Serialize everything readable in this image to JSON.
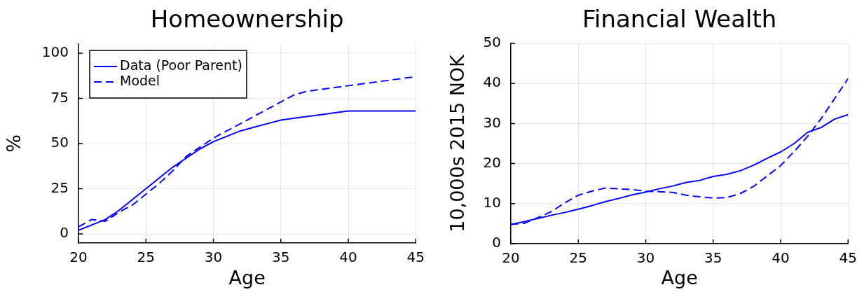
{
  "chart_data": [
    {
      "type": "line",
      "title": "Homeownership",
      "xlabel": "Age",
      "ylabel": "%",
      "x": [
        20,
        21,
        22,
        23,
        24,
        25,
        26,
        27,
        28,
        29,
        30,
        31,
        32,
        33,
        34,
        35,
        36,
        37,
        38,
        39,
        40,
        41,
        42,
        43,
        44,
        45
      ],
      "series": [
        {
          "name": "Data (Poor Parent)",
          "color": "#0000ff",
          "line_style": "solid",
          "values": [
            2,
            5,
            8,
            13,
            19,
            25,
            31,
            37,
            42,
            47,
            51,
            54,
            57,
            59,
            61,
            63,
            64,
            65,
            66,
            67,
            68,
            68,
            68,
            68,
            68,
            68
          ]
        },
        {
          "name": "Model",
          "color": "#0000ff",
          "line_style": "dashed",
          "values": [
            4,
            8,
            7,
            12,
            16,
            22,
            28,
            35,
            43,
            48,
            53,
            57,
            61,
            65,
            69,
            73,
            77,
            79,
            80,
            81,
            82,
            83,
            84,
            85,
            86,
            87
          ]
        }
      ],
      "xlim": [
        20,
        45
      ],
      "xticks": [
        20,
        25,
        30,
        35,
        40,
        45
      ],
      "ylim": [
        -5,
        105
      ],
      "yticks": [
        0,
        25,
        50,
        75,
        100
      ],
      "grid": true,
      "legend": "top left"
    },
    {
      "type": "line",
      "title": "Financial Wealth",
      "xlabel": "Age",
      "ylabel": "10,000s 2015 NOK",
      "x": [
        20,
        21,
        22,
        23,
        24,
        25,
        26,
        27,
        28,
        29,
        30,
        31,
        32,
        33,
        34,
        35,
        36,
        37,
        38,
        39,
        40,
        41,
        42,
        43,
        44,
        45
      ],
      "series": [
        {
          "color": "#0000ff",
          "line_style": "solid",
          "values": [
            4.8,
            5.5,
            6.3,
            7.1,
            7.8,
            8.6,
            9.5,
            10.5,
            11.3,
            12.2,
            12.9,
            13.7,
            14.4,
            15.3,
            15.8,
            16.8,
            17.3,
            18.2,
            19.6,
            21.3,
            22.9,
            25,
            27.8,
            29,
            31.1,
            32.2
          ]
        },
        {
          "color": "#0000ff",
          "line_style": "dashed",
          "values": [
            4.8,
            5.1,
            6.5,
            8,
            10.2,
            12.1,
            13.1,
            13.9,
            13.7,
            13.5,
            13.1,
            13,
            12.8,
            12.1,
            11.7,
            11.4,
            11.5,
            12.5,
            14.3,
            16.9,
            19.5,
            23,
            26.8,
            31.2,
            36.2,
            41.2
          ]
        }
      ],
      "xlim": [
        20,
        45
      ],
      "xticks": [
        20,
        25,
        30,
        35,
        40,
        45
      ],
      "ylim": [
        0,
        50
      ],
      "yticks": [
        0,
        10,
        20,
        30,
        40,
        50
      ],
      "grid": true
    }
  ]
}
